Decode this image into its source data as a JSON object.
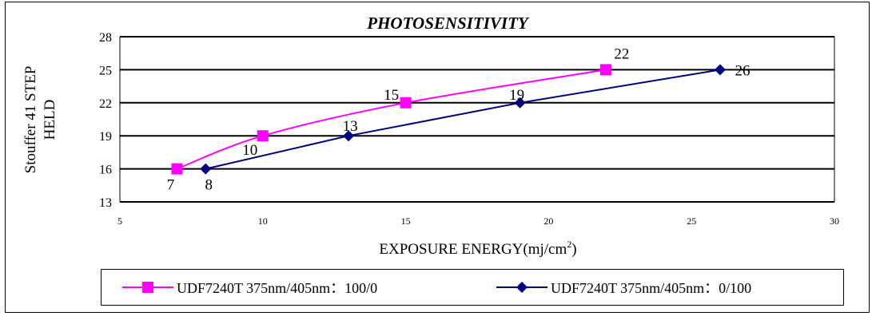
{
  "chart_data": {
    "type": "line",
    "title": "PHOTOSENSITIVITY",
    "xlabel": "EXPOSURE ENERGY(mj/cm",
    "xlabel_sup": "2",
    "xlabel_tail": ")",
    "ylabel_line1": "Stouffer 41 STEP",
    "ylabel_line2": "HELD",
    "xlim": [
      5,
      30
    ],
    "ylim": [
      13,
      28
    ],
    "x_ticks": [
      "5",
      "10",
      "15",
      "20",
      "25",
      "30"
    ],
    "y_ticks": [
      "13",
      "16",
      "19",
      "22",
      "25",
      "28"
    ],
    "grid": "horizontal",
    "legend_position": "bottom",
    "series": [
      {
        "name": "UDF7240T 375nm/405nm：100/0",
        "color": "#ff00ff",
        "marker": "square",
        "x": [
          7,
          10,
          15,
          22
        ],
        "y": [
          16,
          19,
          22,
          25
        ],
        "labels": [
          "7",
          "10",
          "15",
          "22"
        ]
      },
      {
        "name": "UDF7240T 375nm/405nm：0/100",
        "color": "#000080",
        "marker": "diamond",
        "x": [
          8,
          13,
          19,
          26
        ],
        "y": [
          16,
          19,
          22,
          25
        ],
        "labels": [
          "8",
          "13",
          "19",
          "26"
        ]
      }
    ]
  }
}
